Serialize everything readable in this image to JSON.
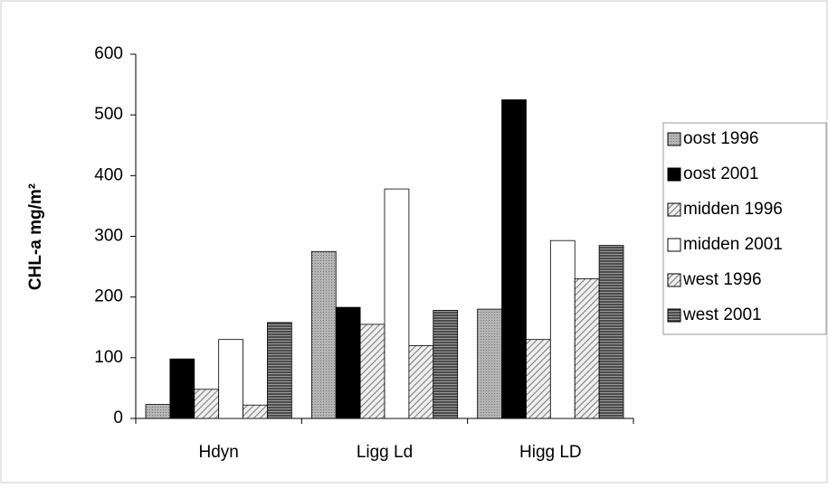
{
  "chart_data": {
    "type": "bar",
    "y_label": "CHL-a mg/m²",
    "categories": [
      "Hdyn",
      "Ligg Ld",
      "Higg LD"
    ],
    "series": [
      {
        "name": "oost 1996",
        "color": "#a8a8a8",
        "pattern": "dots",
        "values": [
          23,
          275,
          180
        ]
      },
      {
        "name": "oost 2001",
        "color": "#000000",
        "pattern": "solid",
        "values": [
          98,
          183,
          525
        ]
      },
      {
        "name": "midden 1996",
        "color": "#c8c8c8",
        "pattern": "diagonal",
        "values": [
          48,
          155,
          130
        ]
      },
      {
        "name": "midden 2001",
        "color": "#ffffff",
        "pattern": "solid",
        "values": [
          130,
          378,
          293
        ]
      },
      {
        "name": "west 1996",
        "color": "#bcbcbc",
        "pattern": "diagonal",
        "values": [
          22,
          120,
          230
        ]
      },
      {
        "name": "west 2001",
        "color": "#606060",
        "pattern": "horizontal",
        "values": [
          158,
          178,
          285
        ]
      }
    ],
    "ylim": [
      0,
      600
    ],
    "yticks": [
      0,
      100,
      200,
      300,
      400,
      500,
      600
    ],
    "grid": false
  }
}
